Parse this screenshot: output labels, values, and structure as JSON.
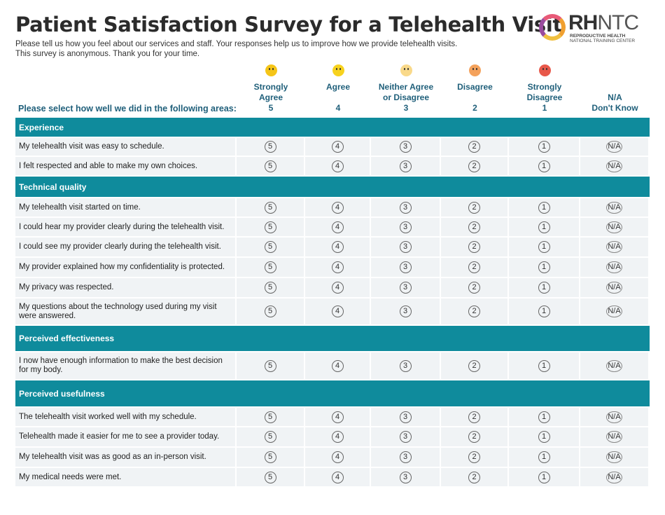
{
  "title": "Patient Satisfaction Survey for a Telehealth Visit",
  "intro": [
    "Please tell us how you feel about our services and staff. Your responses help us to improve how we provide telehealth visits.",
    "This survey is anonymous. Thank you for your time."
  ],
  "logo": {
    "text": "RHNTC",
    "line1": "REPRODUCTIVE HEALTH",
    "line2": "NATIONAL TRAINING CENTER"
  },
  "prompt": "Please select how well we did in the following areas:",
  "scale": [
    {
      "label1": "Strongly",
      "label2": "Agree",
      "value": "5",
      "emoji": "grinning-face-icon",
      "color": "#f5c518"
    },
    {
      "label1": "Agree",
      "label2": "",
      "value": "4",
      "emoji": "smiling-face-icon",
      "color": "#f7d21e"
    },
    {
      "label1": "Neither Agree",
      "label2": "or Disagree",
      "value": "3",
      "emoji": "neutral-face-icon",
      "color": "#f9d98a"
    },
    {
      "label1": "Disagree",
      "label2": "",
      "value": "2",
      "emoji": "frowning-face-icon",
      "color": "#f4a25c"
    },
    {
      "label1": "Strongly",
      "label2": "Disagree",
      "value": "1",
      "emoji": "angry-face-icon",
      "color": "#e8584a"
    },
    {
      "label1": "",
      "label2": "N/A",
      "value": "Don't Know",
      "emoji": "",
      "color": ""
    }
  ],
  "options": [
    "5",
    "4",
    "3",
    "2",
    "1",
    "N/A"
  ],
  "sections": [
    {
      "title": "Experience",
      "h": 29,
      "questions": [
        {
          "text": "My telehealth visit was easy to schedule.",
          "h": 27
        },
        {
          "text": "I felt respected and able to make my own choices.",
          "h": 28
        }
      ]
    },
    {
      "title": "Technical quality",
      "h": 31,
      "questions": [
        {
          "text": "My telehealth visit started on time.",
          "h": 28
        },
        {
          "text": "I could hear my provider clearly during the telehealth visit.",
          "h": 28
        },
        {
          "text": "I could see my provider clearly during the telehealth visit.",
          "h": 29
        },
        {
          "text": "My provider explained how my confidentiality is protected.",
          "h": 29
        },
        {
          "text": "My privacy was respected.",
          "h": 29
        },
        {
          "text": "My questions about the technology used during my visit were answered.",
          "h": 39
        }
      ]
    },
    {
      "title": "Perceived effectiveness",
      "h": 38,
      "questions": [
        {
          "text": "I now have enough information to make the best decision for my body.",
          "h": 40
        }
      ]
    },
    {
      "title": "Perceived usefulness",
      "h": 39,
      "questions": [
        {
          "text": "The telehealth visit worked well with my schedule.",
          "h": 28
        },
        {
          "text": "Telehealth made it easier for me to see a provider today.",
          "h": 29
        },
        {
          "text": "My telehealth visit was as good as an in-person visit.",
          "h": 29
        },
        {
          "text": "My medical needs were met.",
          "h": 28
        }
      ]
    }
  ]
}
